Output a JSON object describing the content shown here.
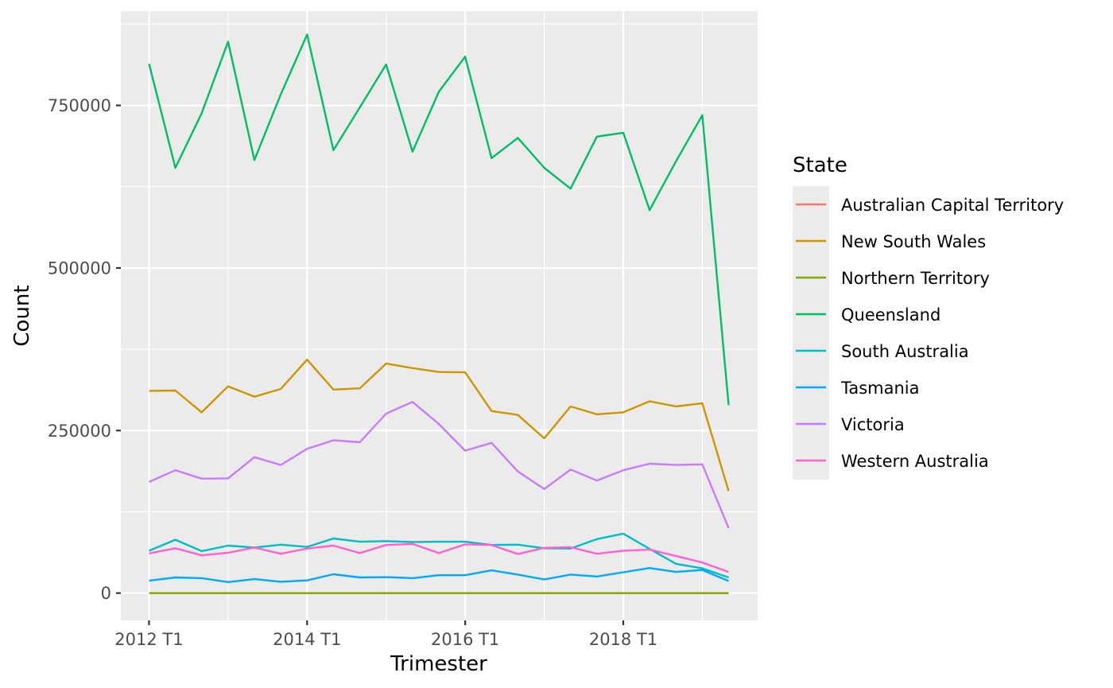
{
  "chart_data": {
    "type": "line",
    "xlabel": "Trimester",
    "ylabel": "Count",
    "x_ticks": [
      {
        "index": 0,
        "label": "2012 T1"
      },
      {
        "index": 6,
        "label": "2014 T1"
      },
      {
        "index": 12,
        "label": "2016 T1"
      },
      {
        "index": 18,
        "label": "2018 T1"
      }
    ],
    "y_ticks": [
      0,
      250000,
      500000,
      750000
    ],
    "ylim": [
      -42000,
      895000
    ],
    "xlim": [
      -1.07,
      23.1
    ],
    "grid": true,
    "legend": {
      "title": "State",
      "position": "right"
    },
    "series": [
      {
        "name": "Australian Capital Territory",
        "color": "#F8766D",
        "values": [
          0,
          0,
          0,
          0,
          0,
          0,
          0,
          0,
          0,
          0,
          0,
          0,
          0,
          0,
          0,
          0,
          0,
          0,
          0,
          0,
          0,
          0,
          0
        ]
      },
      {
        "name": "New South Wales",
        "color": "#CD9600",
        "values": [
          311000,
          311500,
          278000,
          318000,
          302000,
          314000,
          359000,
          313000,
          315000,
          353000,
          346000,
          340000,
          339500,
          280000,
          274000,
          238000,
          287000,
          275000,
          278000,
          295000,
          287000,
          292000,
          157000
        ]
      },
      {
        "name": "Northern Territory",
        "color": "#7CAE00",
        "values": [
          0,
          0,
          0,
          0,
          0,
          0,
          0,
          0,
          0,
          0,
          0,
          0,
          0,
          0,
          0,
          0,
          0,
          0,
          0,
          0,
          0,
          0,
          0
        ]
      },
      {
        "name": "Queensland",
        "color": "#00BE67",
        "values": [
          814000,
          654000,
          738000,
          848000,
          666000,
          767000,
          859000,
          681000,
          747000,
          813000,
          679000,
          771000,
          825000,
          669000,
          700000,
          654000,
          622000,
          702000,
          708000,
          589000,
          664000,
          735000,
          289000
        ]
      },
      {
        "name": "South Australia",
        "color": "#00BFC4",
        "values": [
          65000,
          82000,
          64500,
          73000,
          70000,
          74500,
          71000,
          84000,
          79000,
          80000,
          78500,
          79000,
          79000,
          74000,
          74500,
          69000,
          68500,
          83000,
          91500,
          68000,
          45000,
          38000,
          24000
        ]
      },
      {
        "name": "Tasmania",
        "color": "#00A9FF",
        "values": [
          19000,
          24000,
          23000,
          17000,
          21500,
          17500,
          19500,
          29000,
          24000,
          24500,
          23000,
          27500,
          27500,
          35000,
          28500,
          21000,
          28500,
          25500,
          32000,
          38500,
          32500,
          35500,
          18500
        ]
      },
      {
        "name": "Victoria",
        "color": "#C77CFF",
        "values": [
          171000,
          189000,
          176000,
          176500,
          209000,
          197000,
          222000,
          235000,
          232000,
          276000,
          294000,
          260000,
          219000,
          231000,
          187000,
          160000,
          190000,
          173000,
          189000,
          199000,
          197000,
          198000,
          100000
        ]
      },
      {
        "name": "Western Australia",
        "color": "#FF61CC",
        "values": [
          61000,
          69000,
          58000,
          62000,
          70000,
          60500,
          68500,
          73000,
          61500,
          74000,
          75500,
          61500,
          75000,
          74000,
          60000,
          69500,
          70500,
          60500,
          65000,
          67000,
          57000,
          47000,
          32500
        ]
      }
    ]
  }
}
